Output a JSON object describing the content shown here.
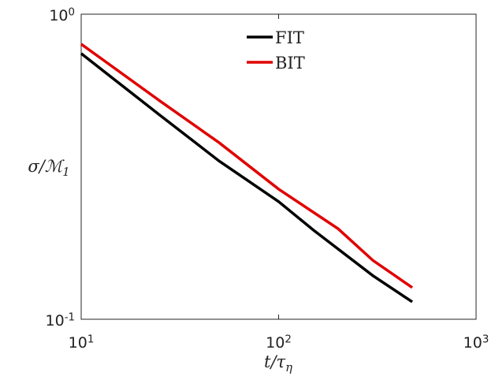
{
  "chart_data": {
    "type": "line",
    "xlabel": "t/τ_η",
    "ylabel": "σ/ℳ_1",
    "xscale": "log",
    "yscale": "log",
    "xlim": [
      10,
      1000
    ],
    "ylim": [
      0.1,
      1
    ],
    "xticks": [
      {
        "value": 10,
        "label": "10^1"
      },
      {
        "value": 100,
        "label": "10^2"
      },
      {
        "value": 1000,
        "label": "10^3"
      }
    ],
    "yticks": [
      {
        "value": 0.1,
        "label": "10^-1"
      },
      {
        "value": 1,
        "label": "10^0"
      }
    ],
    "legend": "top",
    "series": [
      {
        "name": "FIT",
        "color": "#000000",
        "x": [
          10,
          25,
          50,
          100,
          150,
          300,
          475
        ],
        "values": [
          0.743,
          0.467,
          0.33,
          0.243,
          0.196,
          0.139,
          0.114
        ]
      },
      {
        "name": "BIT",
        "color": "#e00000",
        "x": [
          10,
          25,
          50,
          100,
          200,
          300,
          475
        ],
        "values": [
          0.798,
          0.52,
          0.379,
          0.267,
          0.198,
          0.156,
          0.127
        ]
      }
    ]
  }
}
